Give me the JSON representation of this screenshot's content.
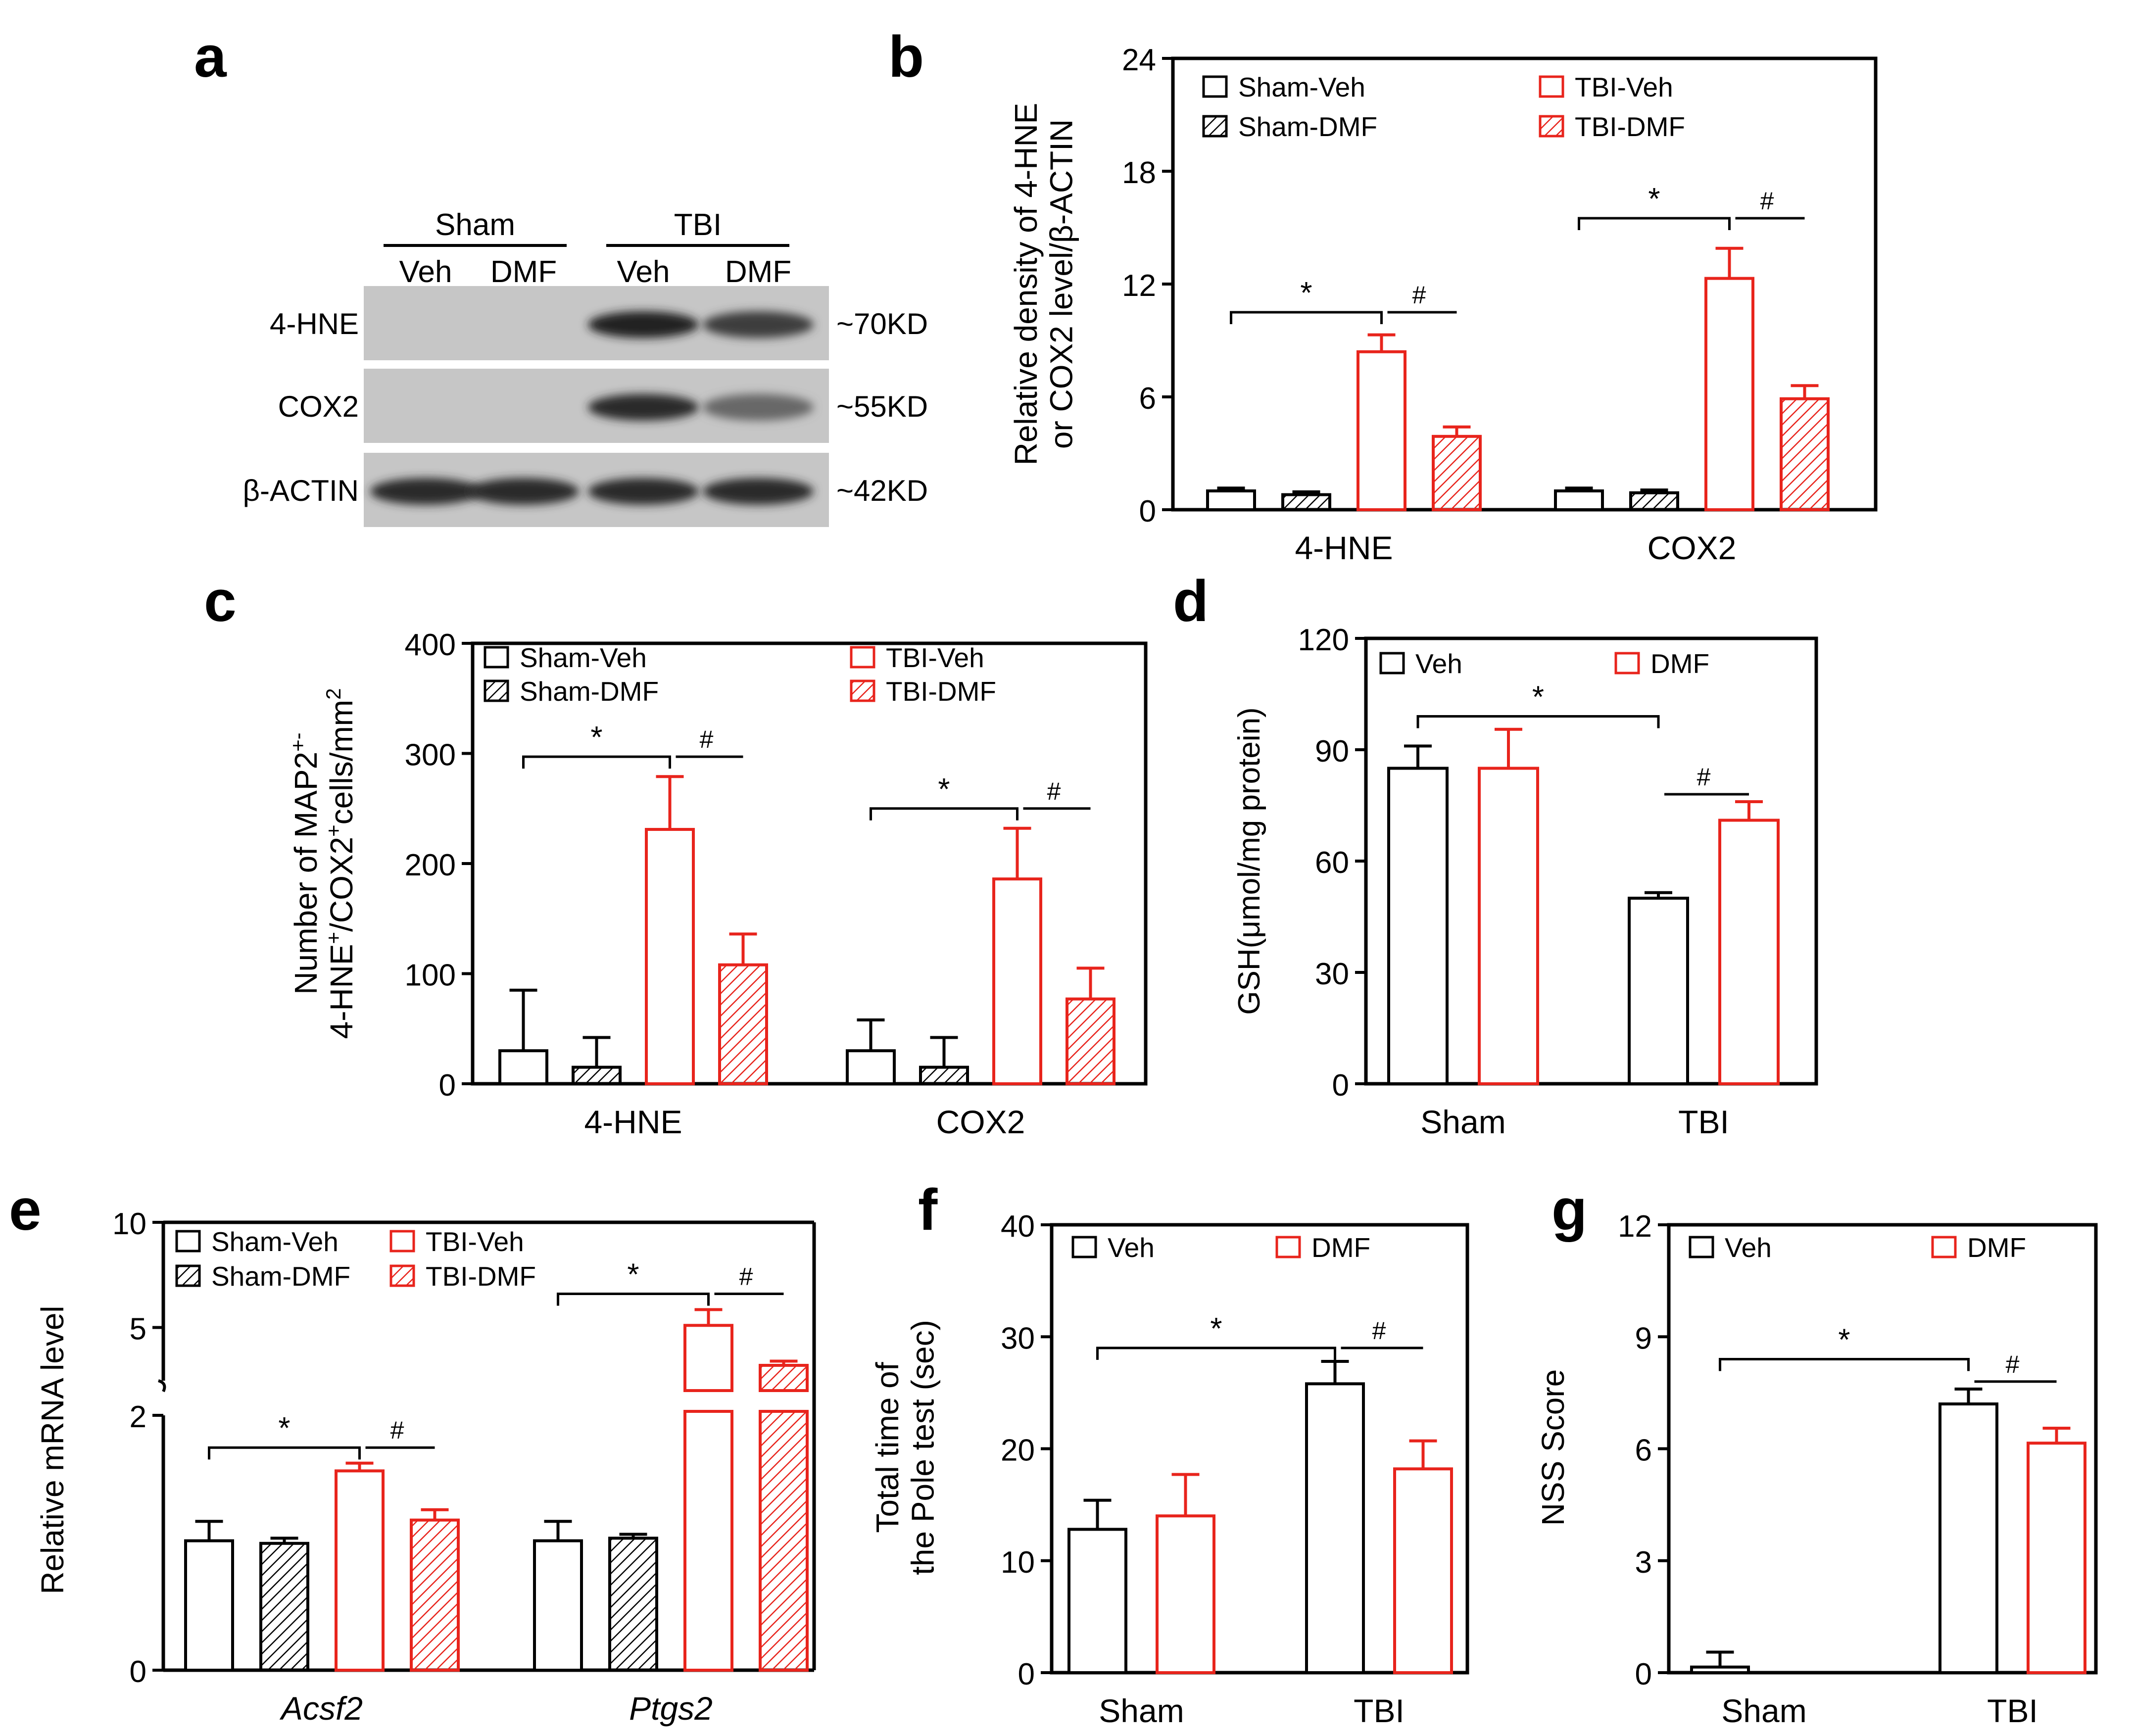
{
  "panel_labels": [
    "a",
    "b",
    "c",
    "d",
    "e",
    "f",
    "g"
  ],
  "blot": {
    "groups": [
      "Sham",
      "TBI"
    ],
    "lanes": [
      "Veh",
      "DMF",
      "Veh",
      "DMF"
    ],
    "rows": [
      {
        "name": "4-HNE",
        "size": "~70KD",
        "intensity": [
          0.0,
          0.0,
          0.95,
          0.8
        ]
      },
      {
        "name": "COX2",
        "size": "~55KD",
        "intensity": [
          0.0,
          0.0,
          0.9,
          0.55
        ]
      },
      {
        "name": "β-ACTIN",
        "size": "~42KD",
        "intensity": [
          0.9,
          0.9,
          0.9,
          0.9
        ]
      }
    ]
  },
  "colors": {
    "sham": "#000000",
    "tbi": "#e8241c"
  },
  "chart_data": [
    {
      "id": "b",
      "type": "bar",
      "categories": [
        "4-HNE",
        "COX2"
      ],
      "series": [
        {
          "name": "Sham-Veh",
          "values": [
            1.0,
            1.0
          ],
          "errors": [
            0.15,
            0.15
          ]
        },
        {
          "name": "Sham-DMF",
          "values": [
            0.8,
            0.9
          ],
          "errors": [
            0.15,
            0.15
          ]
        },
        {
          "name": "TBI-Veh",
          "values": [
            8.4,
            12.3
          ],
          "errors": [
            0.9,
            1.6
          ]
        },
        {
          "name": "TBI-DMF",
          "values": [
            3.9,
            5.9
          ],
          "errors": [
            0.5,
            0.7
          ]
        }
      ],
      "ylim": [
        0,
        24
      ],
      "yticks": [
        "0",
        "6",
        "12",
        "18",
        "24"
      ],
      "ylabel": [
        "Relative density of 4-HNE",
        "or COX2 level/β-ACTIN"
      ],
      "significance": [
        {
          "symbol": "*",
          "from_category": 0,
          "from_series": 0,
          "to_series": 2,
          "y": 10.5
        },
        {
          "symbol": "#",
          "from_category": 0,
          "from_series": 2,
          "to_series": 3,
          "y": 10.5
        },
        {
          "symbol": "*",
          "from_category": 1,
          "from_series": 0,
          "to_series": 2,
          "y": 15.5
        },
        {
          "symbol": "#",
          "from_category": 1,
          "from_series": 2,
          "to_series": 3,
          "y": 15.5
        }
      ]
    },
    {
      "id": "c",
      "type": "bar",
      "categories": [
        "4-HNE",
        "COX2"
      ],
      "series": [
        {
          "name": "Sham-Veh",
          "values": [
            30,
            30
          ],
          "errors": [
            55,
            28
          ]
        },
        {
          "name": "Sham-DMF",
          "values": [
            15,
            15
          ],
          "errors": [
            27,
            27
          ]
        },
        {
          "name": "TBI-Veh",
          "values": [
            231,
            186
          ],
          "errors": [
            48,
            46
          ]
        },
        {
          "name": "TBI-DMF",
          "values": [
            108,
            77
          ],
          "errors": [
            28,
            28
          ]
        }
      ],
      "ylim": [
        0,
        400
      ],
      "yticks": [
        "0",
        "100",
        "200",
        "300",
        "400"
      ],
      "ylabel_line1": "Number of MAP2",
      "ylabel_line2": "4-HNE",
      "ylabel_line2_rest": "/COX2",
      "ylabel_line2_end": "cells/mm",
      "ylabel_sup_plus": "+",
      "ylabel_sup_minus": "-",
      "ylabel_sup_2": "2",
      "significance": [
        {
          "symbol": "*",
          "from_category": 0,
          "from_series": 0,
          "to_series": 2,
          "y": 297
        },
        {
          "symbol": "#",
          "from_category": 0,
          "from_series": 2,
          "to_series": 3,
          "y": 297
        },
        {
          "symbol": "*",
          "from_category": 1,
          "from_series": 0,
          "to_series": 2,
          "y": 250
        },
        {
          "symbol": "#",
          "from_category": 1,
          "from_series": 2,
          "to_series": 3,
          "y": 250
        }
      ]
    },
    {
      "id": "d",
      "type": "bar",
      "categories": [
        "Sham",
        "TBI"
      ],
      "series": [
        {
          "name": "Veh",
          "values": [
            85,
            50
          ],
          "errors": [
            6,
            1.5
          ]
        },
        {
          "name": "DMF",
          "values": [
            85,
            71
          ],
          "errors": [
            10.5,
            5
          ]
        }
      ],
      "ylim": [
        0,
        120
      ],
      "yticks": [
        "0",
        "30",
        "60",
        "90",
        "120"
      ],
      "ylabel": "GSH(μmol/mg protein)",
      "significance": [
        {
          "symbol": "*",
          "from_category": 0,
          "from_series": 0,
          "to_category": 1,
          "to_series": 0,
          "y": 99
        },
        {
          "symbol": "#",
          "from_category": 1,
          "from_series": 0,
          "to_series": 1,
          "y": 78
        }
      ]
    },
    {
      "id": "e",
      "type": "bar",
      "categories": [
        "Acsf2",
        "Ptgs2"
      ],
      "series": [
        {
          "name": "Sham-Veh",
          "values": [
            1.0,
            1.0
          ],
          "errors": [
            0.15,
            0.15
          ]
        },
        {
          "name": "Sham-DMF",
          "values": [
            0.98,
            1.02
          ],
          "errors": [
            0.04,
            0.03
          ]
        },
        {
          "name": "TBI-Veh",
          "values": [
            1.54,
            5.1
          ],
          "errors": [
            0.06,
            0.75
          ]
        },
        {
          "name": "TBI-DMF",
          "values": [
            1.16,
            3.2
          ],
          "errors": [
            0.08,
            0.2
          ]
        }
      ],
      "ylim": [
        0,
        10
      ],
      "yticks": [
        "0",
        "2",
        "5",
        "10"
      ],
      "axis_break": {
        "lower": [
          0,
          2
        ],
        "upper": [
          2,
          10
        ]
      },
      "ylabel": "Relative mRNA level",
      "significance": [
        {
          "symbol": "*",
          "from_category": 0,
          "from_series": 0,
          "to_series": 2,
          "y": 1.72
        },
        {
          "symbol": "#",
          "from_category": 0,
          "from_series": 2,
          "to_series": 3,
          "y": 1.72
        },
        {
          "symbol": "*",
          "from_category": 1,
          "from_series": 0,
          "to_series": 2,
          "y": 6.6
        },
        {
          "symbol": "#",
          "from_category": 1,
          "from_series": 2,
          "to_series": 3,
          "y": 6.6
        }
      ]
    },
    {
      "id": "f",
      "type": "bar",
      "categories": [
        "Sham",
        "TBI"
      ],
      "series": [
        {
          "name": "Veh",
          "values": [
            12.8,
            25.8
          ],
          "errors": [
            2.6,
            2.0
          ]
        },
        {
          "name": "DMF",
          "values": [
            14.0,
            18.2
          ],
          "errors": [
            3.7,
            2.5
          ]
        }
      ],
      "ylim": [
        0,
        40
      ],
      "yticks": [
        "0",
        "10",
        "20",
        "30",
        "40"
      ],
      "ylabel": [
        "Total time of",
        "the Pole test (sec)"
      ],
      "significance": [
        {
          "symbol": "*",
          "from_category": 0,
          "from_series": 0,
          "to_category": 1,
          "to_series": 0,
          "y": 29
        },
        {
          "symbol": "#",
          "from_category": 1,
          "from_series": 0,
          "to_series": 1,
          "y": 29
        }
      ]
    },
    {
      "id": "g",
      "type": "bar",
      "categories": [
        "Sham",
        "TBI"
      ],
      "series": [
        {
          "name": "Veh",
          "values": [
            0.15,
            7.2
          ],
          "errors": [
            0.4,
            0.4
          ]
        },
        {
          "name": "DMF",
          "values": [
            0,
            6.15
          ],
          "errors": [
            0,
            0.4
          ]
        }
      ],
      "ylim": [
        0,
        12
      ],
      "yticks": [
        "0",
        "3",
        "6",
        "9",
        "12"
      ],
      "ylabel": "NSS Score",
      "significance": [
        {
          "symbol": "*",
          "from_category": 0,
          "from_series": 0,
          "to_category": 1,
          "to_series": 0,
          "y": 8.4
        },
        {
          "symbol": "#",
          "from_category": 1,
          "from_series": 0,
          "to_series": 1,
          "y": 7.8
        }
      ]
    }
  ]
}
